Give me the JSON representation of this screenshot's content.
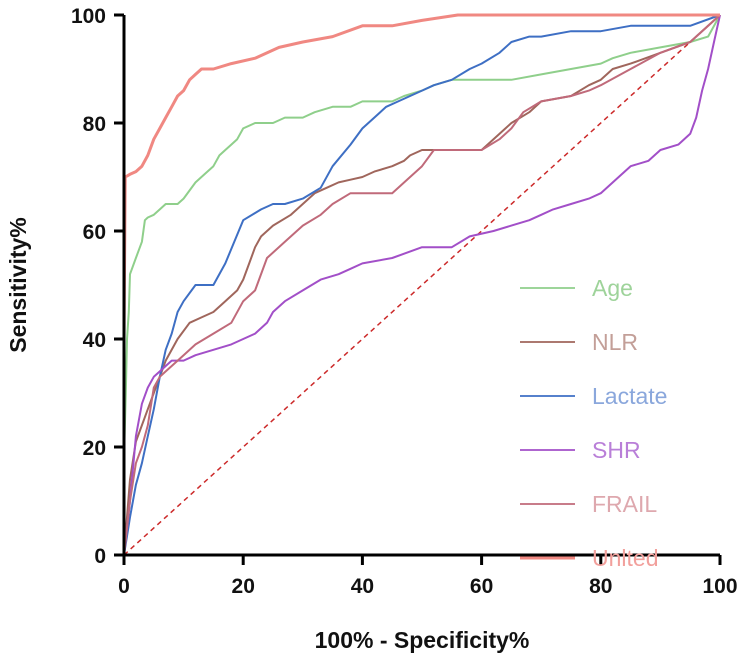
{
  "chart_data": {
    "type": "line",
    "title": "",
    "xlabel": "100% - Specificity%",
    "ylabel": "Sensitivity%",
    "xlim": [
      0,
      100
    ],
    "ylim": [
      0,
      100
    ],
    "xticks": [
      0,
      20,
      40,
      60,
      80,
      100
    ],
    "yticks": [
      0,
      20,
      40,
      60,
      80,
      100
    ],
    "grid": false,
    "legend_position": "right",
    "reference_line": {
      "name": "chance",
      "color": "#cc2a2a",
      "style": "dashed",
      "points": [
        [
          0,
          0
        ],
        [
          100,
          100
        ]
      ]
    },
    "series": [
      {
        "name": "Age",
        "color": "#8fcf8b",
        "label_color": "#9ed39a",
        "points": [
          [
            0,
            0
          ],
          [
            0,
            18
          ],
          [
            0.3,
            30
          ],
          [
            0.5,
            40
          ],
          [
            0.8,
            45
          ],
          [
            1,
            52
          ],
          [
            2,
            55
          ],
          [
            3,
            58
          ],
          [
            3.5,
            62
          ],
          [
            4,
            62.5
          ],
          [
            5,
            63
          ],
          [
            6,
            64
          ],
          [
            7,
            65
          ],
          [
            9,
            65
          ],
          [
            10,
            66
          ],
          [
            12,
            69
          ],
          [
            14,
            71
          ],
          [
            15,
            72
          ],
          [
            16,
            74
          ],
          [
            17,
            75
          ],
          [
            18,
            76
          ],
          [
            19,
            77
          ],
          [
            20,
            79
          ],
          [
            22,
            80
          ],
          [
            25,
            80
          ],
          [
            27,
            81
          ],
          [
            30,
            81
          ],
          [
            32,
            82
          ],
          [
            35,
            83
          ],
          [
            38,
            83
          ],
          [
            40,
            84
          ],
          [
            42,
            84
          ],
          [
            44,
            84
          ],
          [
            45,
            84
          ],
          [
            47,
            85
          ],
          [
            50,
            86
          ],
          [
            52,
            87
          ],
          [
            55,
            88
          ],
          [
            60,
            88
          ],
          [
            65,
            88
          ],
          [
            70,
            89
          ],
          [
            75,
            90
          ],
          [
            80,
            91
          ],
          [
            82,
            92
          ],
          [
            85,
            93
          ],
          [
            90,
            94
          ],
          [
            95,
            95
          ],
          [
            98,
            96
          ],
          [
            100,
            100
          ]
        ]
      },
      {
        "name": "NLR",
        "color": "#a0665c",
        "label_color": "#c39f98",
        "points": [
          [
            0,
            0
          ],
          [
            1,
            14
          ],
          [
            2,
            21
          ],
          [
            4,
            27
          ],
          [
            5,
            30
          ],
          [
            7,
            36
          ],
          [
            9,
            40
          ],
          [
            11,
            43
          ],
          [
            13,
            44
          ],
          [
            15,
            45
          ],
          [
            17,
            47
          ],
          [
            19,
            49
          ],
          [
            20,
            51
          ],
          [
            21,
            54
          ],
          [
            22,
            57
          ],
          [
            23,
            59
          ],
          [
            25,
            61
          ],
          [
            28,
            63
          ],
          [
            30,
            65
          ],
          [
            32,
            67
          ],
          [
            34,
            68
          ],
          [
            36,
            69
          ],
          [
            38,
            69.5
          ],
          [
            40,
            70
          ],
          [
            42,
            71
          ],
          [
            45,
            72
          ],
          [
            47,
            73
          ],
          [
            48,
            74
          ],
          [
            50,
            75
          ],
          [
            55,
            75
          ],
          [
            60,
            75
          ],
          [
            62,
            77
          ],
          [
            65,
            80
          ],
          [
            68,
            82
          ],
          [
            70,
            84
          ],
          [
            75,
            85
          ],
          [
            78,
            87
          ],
          [
            80,
            88
          ],
          [
            82,
            90
          ],
          [
            85,
            91
          ],
          [
            90,
            93
          ],
          [
            95,
            95
          ],
          [
            100,
            100
          ]
        ]
      },
      {
        "name": "Lactate",
        "color": "#3e6fc4",
        "label_color": "#8aa7dc",
        "points": [
          [
            0,
            0
          ],
          [
            1,
            7
          ],
          [
            2,
            13
          ],
          [
            3,
            17
          ],
          [
            4,
            22
          ],
          [
            5,
            27
          ],
          [
            6,
            33
          ],
          [
            7,
            38
          ],
          [
            8,
            41
          ],
          [
            9,
            45
          ],
          [
            10,
            47
          ],
          [
            12,
            50
          ],
          [
            15,
            50
          ],
          [
            17,
            54
          ],
          [
            20,
            62
          ],
          [
            23,
            64
          ],
          [
            25,
            65
          ],
          [
            27,
            65
          ],
          [
            30,
            66
          ],
          [
            33,
            68
          ],
          [
            35,
            72
          ],
          [
            38,
            76
          ],
          [
            40,
            79
          ],
          [
            42,
            81
          ],
          [
            44,
            83
          ],
          [
            46,
            84
          ],
          [
            48,
            85
          ],
          [
            50,
            86
          ],
          [
            52,
            87
          ],
          [
            55,
            88
          ],
          [
            58,
            90
          ],
          [
            60,
            91
          ],
          [
            63,
            93
          ],
          [
            65,
            95
          ],
          [
            68,
            96
          ],
          [
            70,
            96
          ],
          [
            75,
            97
          ],
          [
            80,
            97
          ],
          [
            85,
            98
          ],
          [
            90,
            98
          ],
          [
            95,
            98
          ],
          [
            100,
            100
          ]
        ]
      },
      {
        "name": "SHR",
        "color": "#a24fc8",
        "label_color": "#b97fd8",
        "points": [
          [
            0,
            0
          ],
          [
            1,
            10
          ],
          [
            2,
            22
          ],
          [
            3,
            28
          ],
          [
            4,
            31
          ],
          [
            5,
            33
          ],
          [
            6,
            34
          ],
          [
            7,
            35
          ],
          [
            8,
            36
          ],
          [
            10,
            36
          ],
          [
            12,
            37
          ],
          [
            15,
            38
          ],
          [
            18,
            39
          ],
          [
            20,
            40
          ],
          [
            22,
            41
          ],
          [
            24,
            43
          ],
          [
            25,
            45
          ],
          [
            27,
            47
          ],
          [
            30,
            49
          ],
          [
            33,
            51
          ],
          [
            36,
            52
          ],
          [
            38,
            53
          ],
          [
            40,
            54
          ],
          [
            45,
            55
          ],
          [
            50,
            57
          ],
          [
            55,
            57
          ],
          [
            58,
            59
          ],
          [
            62,
            60
          ],
          [
            65,
            61
          ],
          [
            68,
            62
          ],
          [
            70,
            63
          ],
          [
            72,
            64
          ],
          [
            75,
            65
          ],
          [
            78,
            66
          ],
          [
            80,
            67
          ],
          [
            83,
            70
          ],
          [
            85,
            72
          ],
          [
            88,
            73
          ],
          [
            90,
            75
          ],
          [
            93,
            76
          ],
          [
            95,
            78
          ],
          [
            96,
            81
          ],
          [
            97,
            86
          ],
          [
            98,
            90
          ],
          [
            99,
            95
          ],
          [
            100,
            100
          ]
        ]
      },
      {
        "name": "FRAIL",
        "color": "#c06a7a",
        "label_color": "#dea8ae",
        "points": [
          [
            0,
            0
          ],
          [
            1,
            10
          ],
          [
            2,
            17
          ],
          [
            3,
            20
          ],
          [
            4,
            24
          ],
          [
            5,
            31
          ],
          [
            6,
            33
          ],
          [
            7,
            34
          ],
          [
            8,
            35
          ],
          [
            10,
            37
          ],
          [
            12,
            39
          ],
          [
            15,
            41
          ],
          [
            18,
            43
          ],
          [
            20,
            47
          ],
          [
            22,
            49
          ],
          [
            24,
            55
          ],
          [
            27,
            58
          ],
          [
            30,
            61
          ],
          [
            33,
            63
          ],
          [
            35,
            65
          ],
          [
            38,
            67
          ],
          [
            40,
            67
          ],
          [
            45,
            67
          ],
          [
            48,
            70
          ],
          [
            50,
            72
          ],
          [
            52,
            75
          ],
          [
            55,
            75
          ],
          [
            60,
            75
          ],
          [
            63,
            77
          ],
          [
            65,
            79
          ],
          [
            67,
            82
          ],
          [
            70,
            84
          ],
          [
            75,
            85
          ],
          [
            78,
            86
          ],
          [
            80,
            87
          ],
          [
            85,
            90
          ],
          [
            90,
            93
          ],
          [
            95,
            95
          ],
          [
            100,
            100
          ]
        ]
      },
      {
        "name": "Unlted",
        "color": "#f08882",
        "label_color": "#f2a09c",
        "points": [
          [
            0,
            0
          ],
          [
            0,
            40
          ],
          [
            0.2,
            70
          ],
          [
            1,
            70.5
          ],
          [
            2,
            71
          ],
          [
            3,
            72
          ],
          [
            4,
            74
          ],
          [
            5,
            77
          ],
          [
            6,
            79
          ],
          [
            7,
            81
          ],
          [
            8,
            83
          ],
          [
            9,
            85
          ],
          [
            10,
            86
          ],
          [
            11,
            88
          ],
          [
            12,
            89
          ],
          [
            13,
            90
          ],
          [
            15,
            90
          ],
          [
            18,
            91
          ],
          [
            22,
            92
          ],
          [
            26,
            94
          ],
          [
            30,
            95
          ],
          [
            35,
            96
          ],
          [
            40,
            98
          ],
          [
            45,
            98
          ],
          [
            50,
            99
          ],
          [
            56,
            100
          ],
          [
            70,
            100
          ],
          [
            85,
            100
          ],
          [
            100,
            100
          ]
        ]
      }
    ]
  }
}
